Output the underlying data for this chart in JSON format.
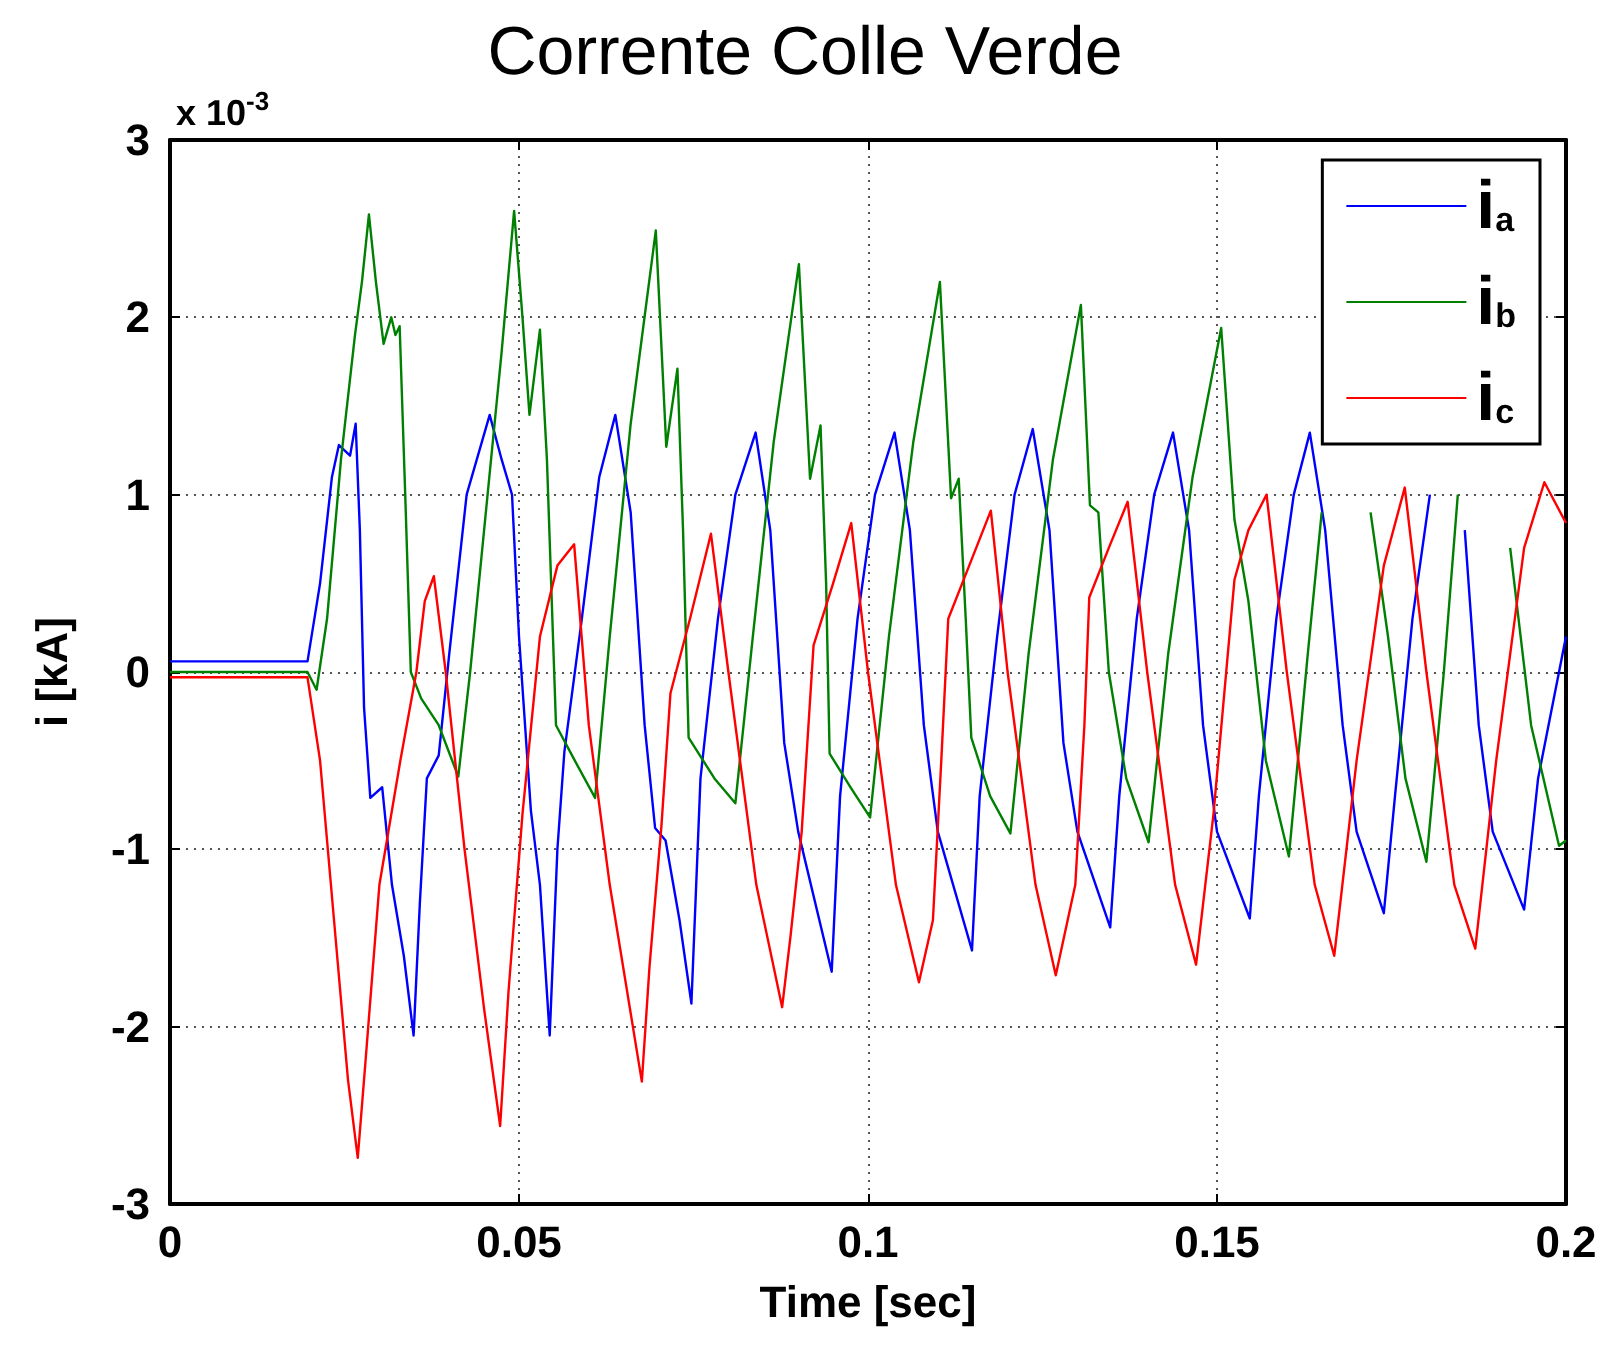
{
  "chart_data": {
    "type": "line",
    "title": "Corrente Colle Verde",
    "xlabel": "Time [sec]",
    "ylabel": "i [kA]",
    "annotations": [
      "x 10$^{-3}$"
    ],
    "xlim": [
      0,
      0.2
    ],
    "xticks": [
      0,
      0.05,
      0.1,
      0.15,
      0.2
    ],
    "ylim": [
      -3,
      3
    ],
    "yticks": [
      -3,
      -2,
      -1,
      0,
      1,
      2,
      3
    ],
    "grid": true,
    "legend": "top right",
    "series": [
      {
        "name": "i$_{a}$",
        "color": "#0000ff",
        "x": [
          0,
          0.0197,
          0.0215,
          0.0232,
          0.0242,
          0.0258,
          0.0266,
          0.0272,
          0.0278,
          0.0287,
          0.0304,
          0.0318,
          0.0335,
          0.0349,
          0.0358,
          0.0368,
          0.0385,
          0.04,
          0.0425,
          0.0458,
          0.0475,
          0.049,
          0.05,
          0.0517,
          0.053,
          0.0544,
          0.0555,
          0.0565,
          0.059,
          0.0615,
          0.0638,
          0.066,
          0.068,
          0.0695,
          0.071,
          0.073,
          0.0747,
          0.076,
          0.0785,
          0.081,
          0.0839,
          0.086,
          0.088,
          0.09,
          0.0948,
          0.096,
          0.0985,
          0.101,
          0.1038,
          0.106,
          0.108,
          0.11,
          0.1149,
          0.116,
          0.1185,
          0.121,
          0.1236,
          0.126,
          0.128,
          0.13,
          0.1347,
          0.136,
          0.1385,
          0.141,
          0.1437,
          0.146,
          0.148,
          0.15,
          0.1547,
          0.156,
          0.1585,
          0.161,
          0.1633,
          0.1655,
          0.168,
          0.17,
          0.1739,
          0.1755,
          0.178,
          0.1805,
          0.183,
          0.1855,
          0.1875,
          0.1895,
          0.194,
          0.196,
          0.2
        ],
        "values": [
          0.06,
          0.06,
          0.5,
          1.1,
          1.28,
          1.22,
          1.4,
          0.8,
          -0.2,
          -0.71,
          -0.65,
          -1.2,
          -1.6,
          -2.05,
          -1.3,
          -0.6,
          -0.47,
          0.1,
          1.0,
          1.45,
          1.2,
          1.0,
          0.2,
          -0.78,
          -1.2,
          -2.05,
          -1.0,
          -0.45,
          0.3,
          1.1,
          1.45,
          0.9,
          -0.3,
          -0.88,
          -0.95,
          -1.4,
          -1.87,
          -0.6,
          0.3,
          1.0,
          1.35,
          0.8,
          -0.4,
          -0.9,
          -1.69,
          -0.7,
          0.3,
          1.0,
          1.35,
          0.8,
          -0.3,
          -0.9,
          -1.57,
          -0.7,
          0.2,
          1.0,
          1.37,
          0.8,
          -0.4,
          -0.9,
          -1.44,
          -0.7,
          0.3,
          1.0,
          1.35,
          0.8,
          -0.3,
          -0.9,
          -1.39,
          -0.7,
          0.3,
          1.0,
          1.35,
          0.8,
          -0.3,
          -0.9,
          -1.36,
          -0.7,
          0.3,
          1.0,
          null,
          0.8,
          -0.3,
          -0.9,
          -1.34,
          -0.6,
          0.2
        ]
      },
      {
        "name": "i$_{b}$",
        "color": "#008000",
        "x": [
          0,
          0.0197,
          0.021,
          0.0225,
          0.0245,
          0.0265,
          0.0275,
          0.0285,
          0.0295,
          0.0306,
          0.0317,
          0.0323,
          0.0329,
          0.0337,
          0.0345,
          0.036,
          0.0385,
          0.0413,
          0.043,
          0.0455,
          0.0475,
          0.0493,
          0.0505,
          0.0515,
          0.053,
          0.054,
          0.0553,
          0.058,
          0.0609,
          0.063,
          0.066,
          0.0696,
          0.0711,
          0.0727,
          0.0735,
          0.0743,
          0.078,
          0.081,
          0.0835,
          0.0865,
          0.0901,
          0.0917,
          0.0932,
          0.094,
          0.0945,
          0.0975,
          0.1003,
          0.103,
          0.1065,
          0.1103,
          0.1119,
          0.113,
          0.114,
          0.1148,
          0.1175,
          0.1204,
          0.123,
          0.1265,
          0.1305,
          0.1318,
          0.133,
          0.1345,
          0.137,
          0.1402,
          0.143,
          0.1465,
          0.1506,
          0.1525,
          0.1545,
          0.157,
          0.1603,
          0.163,
          0.165,
          0.167,
          0.17,
          0.172,
          0.1745,
          0.177,
          0.18,
          0.1825,
          0.1845,
          0.187,
          0.19,
          0.192,
          0.195,
          0.199,
          0.2
        ],
        "values": [
          0,
          0,
          -0.1,
          0.3,
          1.2,
          1.9,
          2.2,
          2.58,
          2.2,
          1.85,
          2.0,
          1.9,
          1.95,
          1.0,
          0.0,
          -0.15,
          -0.3,
          -0.59,
          0.0,
          1.0,
          1.8,
          2.6,
          2.0,
          1.45,
          1.93,
          1.2,
          -0.3,
          -0.5,
          -0.71,
          0.2,
          1.4,
          2.49,
          1.27,
          1.71,
          0.8,
          -0.37,
          -0.6,
          -0.74,
          0.2,
          1.3,
          2.3,
          1.09,
          1.39,
          0.5,
          -0.46,
          -0.65,
          -0.82,
          0.2,
          1.3,
          2.2,
          0.98,
          1.09,
          0.3,
          -0.37,
          -0.7,
          -0.91,
          0.1,
          1.2,
          2.07,
          0.94,
          0.9,
          0.0,
          -0.6,
          -0.96,
          0.1,
          1.1,
          1.94,
          0.86,
          0.4,
          -0.5,
          -1.04,
          0.1,
          0.9,
          null,
          null,
          0.9,
          0.2,
          -0.6,
          -1.07,
          0.0,
          1.0,
          null,
          null,
          0.7,
          -0.3,
          -0.98,
          -0.95
        ]
      },
      {
        "name": "i$_{c}$",
        "color": "#ff0000",
        "x": [
          0,
          0.0197,
          0.0215,
          0.0235,
          0.0255,
          0.0269,
          0.028,
          0.03,
          0.033,
          0.0353,
          0.0365,
          0.0378,
          0.0395,
          0.0422,
          0.045,
          0.0473,
          0.0485,
          0.0505,
          0.053,
          0.0555,
          0.0579,
          0.06,
          0.063,
          0.0676,
          0.0687,
          0.0704,
          0.0717,
          0.0745,
          0.0775,
          0.08,
          0.084,
          0.0877,
          0.0889,
          0.0905,
          0.0922,
          0.095,
          0.0976,
          0.1,
          0.104,
          0.1073,
          0.1093,
          0.1105,
          0.1115,
          0.1145,
          0.1176,
          0.12,
          0.124,
          0.1269,
          0.1297,
          0.131,
          0.1317,
          0.1345,
          0.1372,
          0.14,
          0.144,
          0.147,
          0.1495,
          0.1525,
          0.1545,
          0.1571,
          0.16,
          0.164,
          0.1668,
          0.17,
          0.1739,
          0.1769,
          0.18,
          0.184,
          0.187,
          0.19,
          0.194,
          0.1969,
          0.2
        ],
        "values": [
          -0.03,
          -0.03,
          -0.5,
          -1.4,
          -2.3,
          -2.74,
          -2.2,
          -1.2,
          -0.5,
          0.0,
          0.4,
          0.54,
          0.0,
          -1.0,
          -1.9,
          -2.56,
          -1.8,
          -0.8,
          0.2,
          0.6,
          0.72,
          -0.3,
          -1.2,
          -2.31,
          -1.66,
          -0.87,
          -0.12,
          0.3,
          0.78,
          0.0,
          -1.2,
          -1.89,
          -1.49,
          -0.9,
          0.15,
          0.5,
          0.84,
          0.0,
          -1.2,
          -1.75,
          -1.4,
          -0.5,
          0.3,
          0.6,
          0.91,
          0.0,
          -1.2,
          -1.71,
          -1.2,
          -0.3,
          0.42,
          0.7,
          0.96,
          0.0,
          -1.2,
          -1.65,
          -0.8,
          0.52,
          0.8,
          1.0,
          0.0,
          -1.2,
          -1.6,
          -0.5,
          0.6,
          1.04,
          0.0,
          -1.2,
          -1.56,
          -0.5,
          0.7,
          1.07,
          0.84
        ]
      }
    ]
  }
}
